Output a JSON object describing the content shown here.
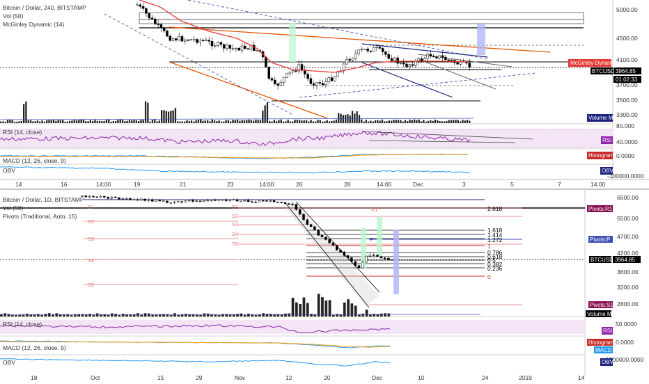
{
  "top_panel": {
    "legend_main": "Bitcoin / Dollar, 240, BITSTAMP",
    "legend_vol": "Vol (50)",
    "legend_mcginley": "McGinley Dynamic (14)",
    "legend_rsi": "RSI (14, close)",
    "legend_macd": "MACD (12, 26, close, 9)",
    "legend_obv": "OBV",
    "price_axis": [
      "5000.00",
      "4500.00",
      "4100.00",
      "3700.00",
      "3500.00",
      "3300.00"
    ],
    "rsi_axis": [
      "80.000",
      "40.0000"
    ],
    "macd_axis": [
      "0.0000"
    ],
    "obv_axis": [
      "-100000.0000"
    ],
    "time_axis": [
      "14",
      "16",
      "14:00",
      "19",
      "21",
      "23",
      "14:00",
      "26",
      "28",
      "14:00",
      "Dec",
      "3",
      "5",
      "7",
      "14:00"
    ],
    "tags": {
      "mcginley": "McGinley Dynamic",
      "symbol": "BTCUSD",
      "price": "3964.85",
      "countdown": "01:02:33",
      "volume_ma": "Volume MA",
      "rsi": "RSI",
      "histogram": "Histogram",
      "obv": "OBV"
    }
  },
  "bottom_panel": {
    "legend_main": "Bitcoin / Dollar, 1D, BITSTAMP",
    "legend_vol": "Vol (50)",
    "legend_pivots": "Pivots (Traditional, Auto, 15)",
    "legend_rsi": "RSI (14, close)",
    "legend_macd": "MACD (12, 26, close, 9)",
    "legend_obv": "OBV",
    "price_axis": [
      "6500.00",
      "5500.00",
      "4700.00",
      "4200.00",
      "3600.00",
      "3200.00",
      "2800.00"
    ],
    "rsi_axis": [
      "50.0000"
    ],
    "macd_axis": [
      "0.0000"
    ],
    "obv_axis": [
      "1200000.0000"
    ],
    "time_axis": [
      "18",
      "Oct",
      "15",
      "29",
      "Nov",
      "12",
      "20",
      "Dec",
      "10",
      "24",
      "2019",
      "14"
    ],
    "pivot_labels": [
      "S1",
      "S2",
      "S3",
      "S4",
      "S5",
      "R1",
      "S1",
      "S2",
      "S3",
      "S4",
      "S5",
      "P"
    ],
    "fib_labels": [
      "2.618",
      "1.618",
      "1.414",
      "1.272",
      "1",
      "0.786",
      "0.618",
      "0.5",
      "0.382",
      "0.236",
      "0"
    ],
    "tags": {
      "pivots_r1": "Pivots:R1",
      "pivots_p": "Pivots:P",
      "symbol": "BTCUSD",
      "price": "3964.85",
      "pivots_s1": "Pivots:S1",
      "volume_ma": "Volume MA",
      "rsi": "RSI",
      "histogram": "Histogram",
      "macd": "MACD",
      "obv": "OBV"
    }
  },
  "colors": {
    "bull": "#555555",
    "bear": "#000000",
    "mcginley": "#e53935",
    "rsi_band": "#f3e5f5",
    "rsi_line": "#8e24aa",
    "macd_line": "#2196f3",
    "signal_line": "#ff9800",
    "pivot_line": "#e57373",
    "fib_line": "#000000",
    "trend_blue": "#1a237e",
    "trend_orange": "#e65100",
    "dashed_blue": "#3f51b5"
  }
}
